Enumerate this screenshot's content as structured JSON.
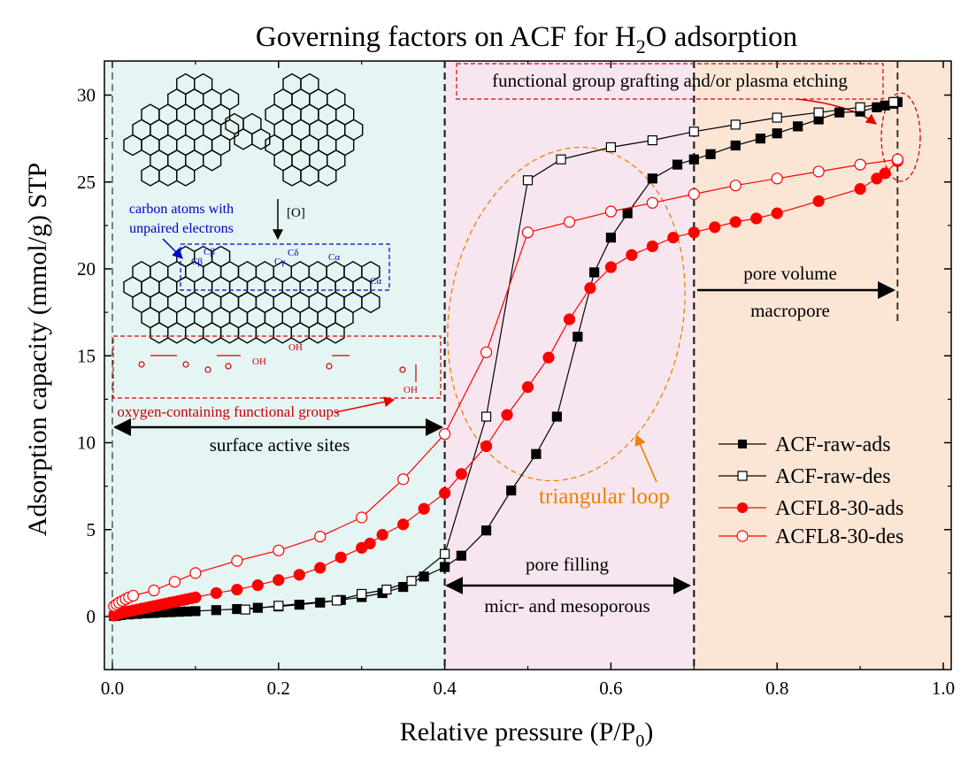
{
  "chart_data": {
    "type": "scatter",
    "title": "Governing factors on ACF for H",
    "title_sub": "2",
    "title_tail": "O adsorption",
    "xlabel": "Relative pressure (P/P",
    "xlabel_sub": "0",
    "xlabel_tail": ")",
    "ylabel": "Adsorption capacity (mmol/g) STP",
    "xlim": [
      0,
      1.0
    ],
    "ylim": [
      -2,
      32.5
    ],
    "x_ticks": [
      "0.0",
      "0.2",
      "0.4",
      "0.6",
      "0.8",
      "1.0"
    ],
    "y_ticks": [
      "0",
      "5",
      "10",
      "15",
      "20",
      "25",
      "30"
    ],
    "grid": false,
    "legend_position": "bottom-right",
    "regions": [
      {
        "x0": 0.0,
        "x1": 0.4,
        "color": "#e4f5f3"
      },
      {
        "x0": 0.4,
        "x1": 0.7,
        "color": "#f7e6ef"
      },
      {
        "x0": 0.7,
        "x1": 1.0,
        "color": "#fbe6d6"
      }
    ],
    "series": [
      {
        "name": "ACF-raw-ads",
        "color": "#000000",
        "marker": "square",
        "filled": true,
        "x": [
          0.002,
          0.005,
          0.01,
          0.02,
          0.03,
          0.04,
          0.05,
          0.06,
          0.07,
          0.08,
          0.09,
          0.1,
          0.125,
          0.15,
          0.175,
          0.2,
          0.225,
          0.25,
          0.275,
          0.3,
          0.325,
          0.35,
          0.375,
          0.4,
          0.42,
          0.45,
          0.48,
          0.51,
          0.535,
          0.56,
          0.58,
          0.6,
          0.62,
          0.65,
          0.68,
          0.7,
          0.72,
          0.75,
          0.78,
          0.8,
          0.825,
          0.85,
          0.875,
          0.9,
          0.92,
          0.93,
          0.94,
          0.945
        ],
        "y": [
          0.03,
          0.05,
          0.08,
          0.12,
          0.15,
          0.18,
          0.2,
          0.23,
          0.25,
          0.27,
          0.29,
          0.31,
          0.37,
          0.43,
          0.5,
          0.58,
          0.68,
          0.8,
          0.95,
          1.12,
          1.35,
          1.7,
          2.3,
          2.85,
          3.5,
          4.95,
          7.25,
          9.35,
          11.5,
          16.1,
          19.8,
          21.8,
          23.2,
          25.2,
          26.0,
          26.3,
          26.6,
          27.1,
          27.5,
          27.8,
          28.2,
          28.6,
          29.0,
          29.05,
          29.3,
          29.4,
          29.5,
          29.6
        ]
      },
      {
        "name": "ACF-raw-des",
        "color": "#000000",
        "marker": "square",
        "filled": false,
        "x": [
          0.16,
          0.2,
          0.27,
          0.3,
          0.33,
          0.36,
          0.4,
          0.45,
          0.5,
          0.54,
          0.6,
          0.65,
          0.7,
          0.75,
          0.8,
          0.85,
          0.9,
          0.94
        ],
        "y": [
          0.4,
          0.62,
          0.92,
          1.3,
          1.55,
          2.05,
          3.6,
          11.5,
          25.1,
          26.3,
          27.0,
          27.4,
          27.9,
          28.3,
          28.7,
          29.0,
          29.3,
          29.6
        ]
      },
      {
        "name": "ACFL8-30-ads",
        "color": "#ff0000",
        "marker": "circle",
        "filled": true,
        "x": [
          0.002,
          0.004,
          0.006,
          0.008,
          0.01,
          0.012,
          0.015,
          0.018,
          0.02,
          0.025,
          0.03,
          0.035,
          0.04,
          0.045,
          0.05,
          0.055,
          0.06,
          0.065,
          0.07,
          0.075,
          0.08,
          0.085,
          0.09,
          0.095,
          0.1,
          0.125,
          0.15,
          0.175,
          0.2,
          0.225,
          0.25,
          0.275,
          0.3,
          0.31,
          0.325,
          0.35,
          0.375,
          0.4,
          0.42,
          0.45,
          0.475,
          0.5,
          0.525,
          0.55,
          0.575,
          0.6,
          0.625,
          0.65,
          0.675,
          0.7,
          0.725,
          0.75,
          0.775,
          0.8,
          0.85,
          0.9,
          0.92,
          0.93,
          0.945
        ],
        "y": [
          0.05,
          0.1,
          0.15,
          0.18,
          0.2,
          0.22,
          0.25,
          0.28,
          0.3,
          0.35,
          0.4,
          0.45,
          0.5,
          0.55,
          0.6,
          0.65,
          0.7,
          0.75,
          0.8,
          0.85,
          0.9,
          0.95,
          1.0,
          1.05,
          1.1,
          1.35,
          1.55,
          1.8,
          2.1,
          2.4,
          2.8,
          3.4,
          3.95,
          4.2,
          4.7,
          5.3,
          6.2,
          7.1,
          8.2,
          9.8,
          11.6,
          13.2,
          14.9,
          17.1,
          18.9,
          20.1,
          20.8,
          21.3,
          21.8,
          22.1,
          22.4,
          22.7,
          22.9,
          23.2,
          23.9,
          24.6,
          25.2,
          25.5,
          26.2
        ]
      },
      {
        "name": "ACFL8-30-des",
        "color": "#ff0000",
        "marker": "circle",
        "filled": false,
        "x": [
          0.002,
          0.005,
          0.008,
          0.012,
          0.016,
          0.02,
          0.025,
          0.05,
          0.075,
          0.1,
          0.15,
          0.2,
          0.25,
          0.3,
          0.35,
          0.4,
          0.45,
          0.5,
          0.55,
          0.6,
          0.65,
          0.7,
          0.75,
          0.8,
          0.85,
          0.9,
          0.945
        ],
        "y": [
          0.6,
          0.7,
          0.8,
          0.9,
          1.0,
          1.1,
          1.2,
          1.5,
          2.0,
          2.5,
          3.2,
          3.8,
          4.6,
          5.7,
          7.9,
          10.5,
          15.2,
          22.1,
          22.7,
          23.3,
          23.8,
          24.3,
          24.8,
          25.2,
          25.6,
          26.0,
          26.3
        ]
      }
    ],
    "annotations": {
      "top_box": "functional group grafting and/or plasma etching",
      "carbon_atoms_1": "carbon atoms with",
      "carbon_atoms_2": "unpaired electrons",
      "oxidation": "[O]",
      "oxygen_groups": "oxygen-containing functional groups",
      "surface_sites": "surface active sites",
      "triangular_loop": "triangular loop",
      "pore_filling": "pore filling",
      "micro_meso": "micr- and mesoporous",
      "pore_volume": "pore volume",
      "macropore": "macropore",
      "oh_1": "OH",
      "oh_2": "OH",
      "oh_3": "OH",
      "c_beta_1": "Cβ",
      "c_beta_2": "Cβ",
      "c_gamma": "Cγ",
      "c_delta": "Cδ",
      "c_alpha_1": "Cα",
      "c_alpha_2": "Cα"
    }
  }
}
